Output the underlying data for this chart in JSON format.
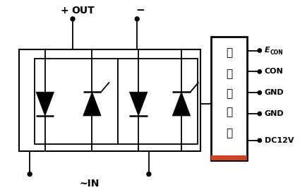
{
  "bg_color": "#ffffff",
  "line_color": "#000000",
  "red_accent": "#cc4422",
  "text_color": "#000000",
  "labels": {
    "plus": "+",
    "minus": "-",
    "out": "OUT",
    "in_label": "~IN",
    "e_con": "E",
    "e_con_sub": "CON",
    "con": "CON",
    "gnd1": "GND",
    "gnd2": "GND",
    "dc12v": "DC12V"
  },
  "box_chinese": [
    "移",
    "相",
    "调",
    "控",
    "器"
  ],
  "figsize": [
    4.25,
    2.69
  ],
  "dpi": 100
}
